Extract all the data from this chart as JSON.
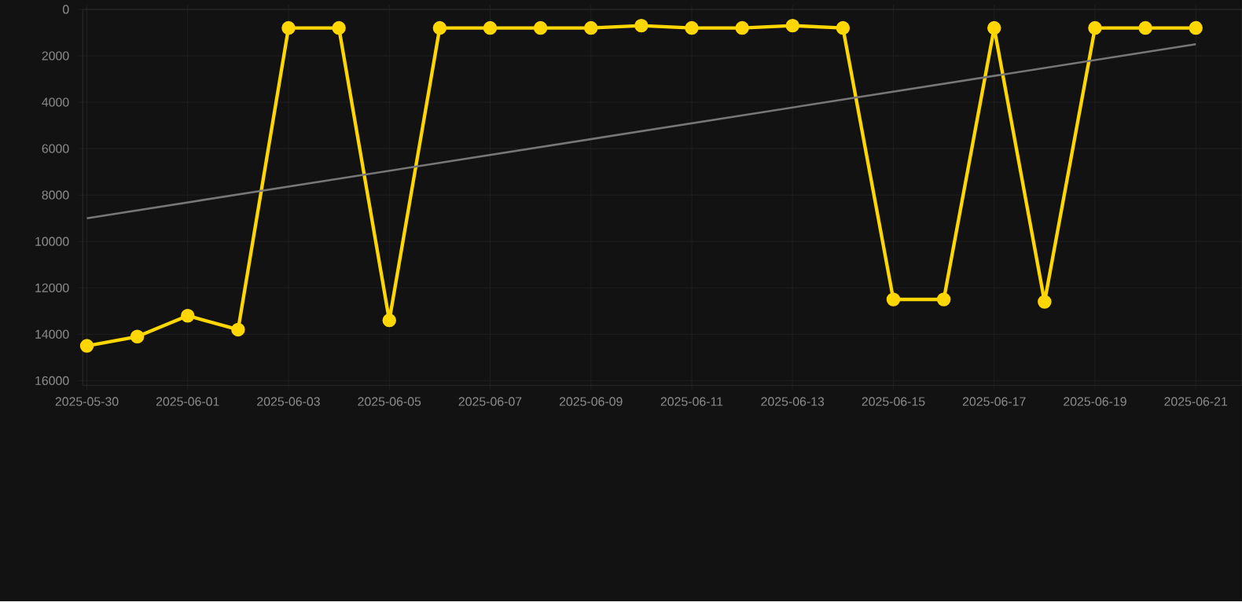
{
  "chart_data": {
    "type": "line",
    "x": [
      "2025-05-30",
      "2025-05-31",
      "2025-06-01",
      "2025-06-02",
      "2025-06-03",
      "2025-06-04",
      "2025-06-05",
      "2025-06-06",
      "2025-06-07",
      "2025-06-08",
      "2025-06-09",
      "2025-06-10",
      "2025-06-11",
      "2025-06-12",
      "2025-06-13",
      "2025-06-14",
      "2025-06-15",
      "2025-06-16",
      "2025-06-17",
      "2025-06-18",
      "2025-06-19",
      "2025-06-20",
      "2025-06-21"
    ],
    "series": [
      {
        "color": "#ffd700",
        "marker": "circle",
        "values": [
          14500,
          14100,
          13200,
          13800,
          800,
          800,
          13400,
          800,
          800,
          800,
          800,
          700,
          800,
          800,
          700,
          800,
          12500,
          12500,
          800,
          12600,
          800,
          800,
          800
        ]
      },
      {
        "type": "line",
        "color": "#777777",
        "marker": "none",
        "x": [
          "2025-05-30",
          "2025-06-21"
        ],
        "values": [
          9000,
          1500
        ]
      }
    ],
    "xlim": [
      "2025-05-29T22:00",
      "2025-06-21T22:00"
    ],
    "ylim": [
      16200,
      0
    ],
    "xticks": [
      "2025-05-30",
      "2025-06-01",
      "2025-06-03",
      "2025-06-05",
      "2025-06-07",
      "2025-06-09",
      "2025-06-11",
      "2025-06-13",
      "2025-06-15",
      "2025-06-17",
      "2025-06-19",
      "2025-06-21"
    ],
    "yticks": [
      0,
      2000,
      4000,
      6000,
      8000,
      10000,
      12000,
      14000,
      16000
    ],
    "grid": true,
    "line_style": "solid"
  }
}
